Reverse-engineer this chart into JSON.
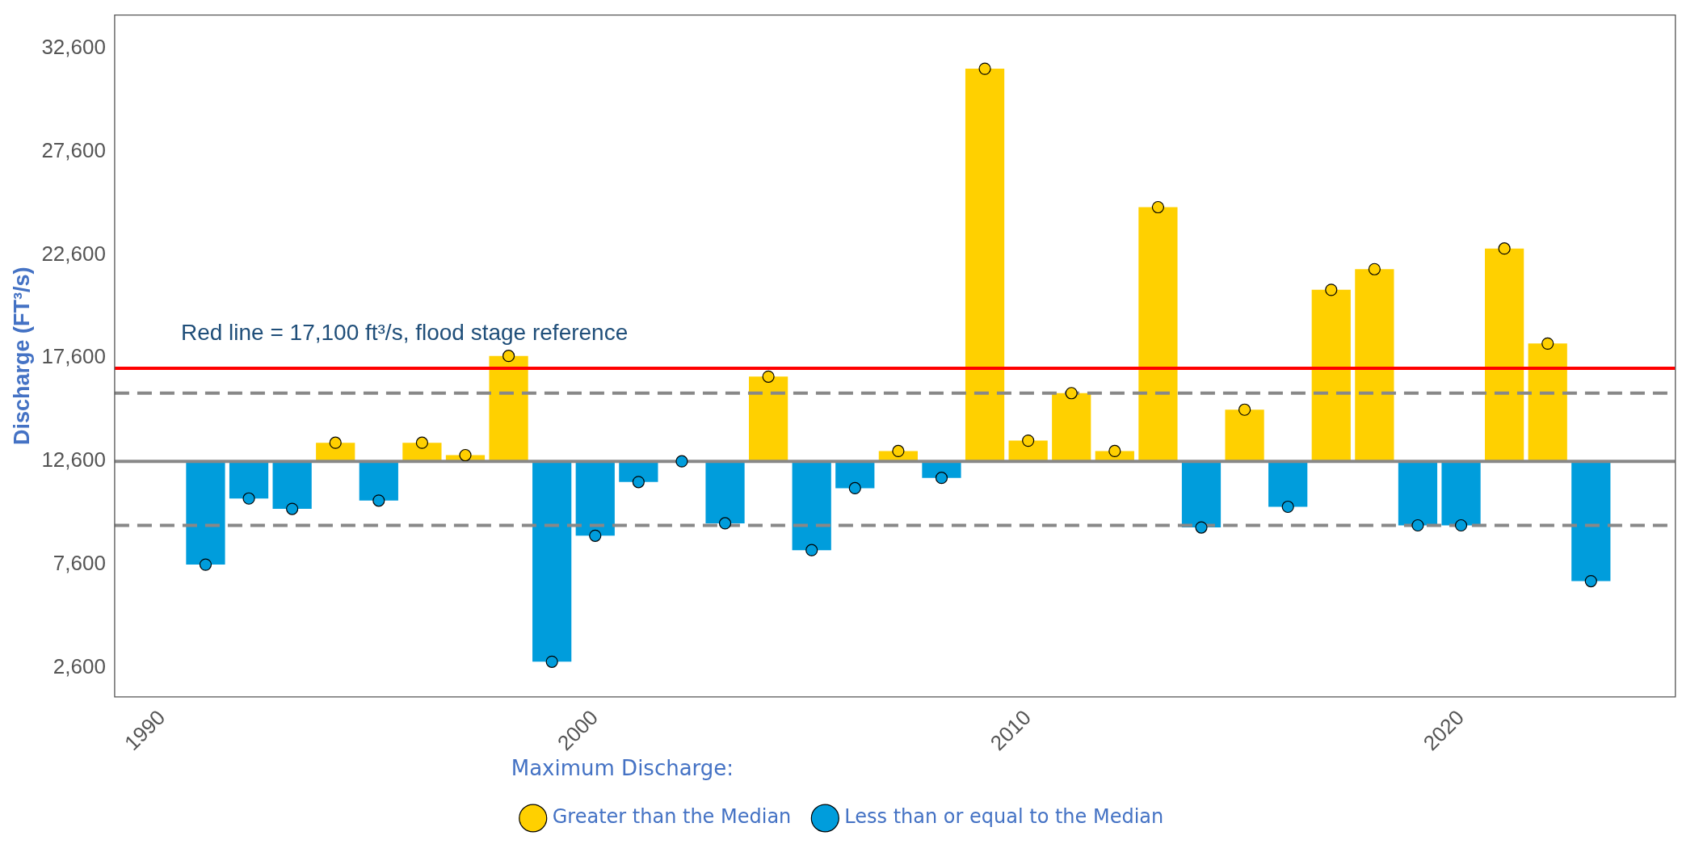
{
  "chart_data": {
    "type": "bar",
    "ylabel": "Discharge (FT³/s)",
    "legend_title": "Maximum Discharge:",
    "legend": "bottom",
    "marker": "circle",
    "grid": false,
    "x": [
      1991,
      1992,
      1993,
      1994,
      1995,
      1996,
      1997,
      1998,
      1999,
      2000,
      2001,
      2002,
      2003,
      2004,
      2005,
      2006,
      2007,
      2008,
      2009,
      2010,
      2011,
      2012,
      2013,
      2014,
      2015,
      2016,
      2017,
      2018,
      2019,
      2020,
      2021,
      2022,
      2023
    ],
    "xlim": [
      1988.9,
      2024.95
    ],
    "xticks": [
      1990,
      2000,
      2010,
      2020
    ],
    "ylim": [
      1200,
      34200
    ],
    "yticks": [
      {
        "value": 2600,
        "label": "2,600"
      },
      {
        "value": 7600,
        "label": "7,600"
      },
      {
        "value": 12600,
        "label": "12,600"
      },
      {
        "value": 17600,
        "label": "17,600"
      },
      {
        "value": 22600,
        "label": "22,600"
      },
      {
        "value": 27600,
        "label": "27,600"
      },
      {
        "value": 32600,
        "label": "32,600"
      }
    ],
    "series": [
      {
        "base": [
          12600,
          12600,
          12600,
          12600,
          12600,
          12600,
          12600,
          12600,
          12600,
          12600,
          12600,
          null,
          12600,
          12600,
          12600,
          12600,
          12600,
          12600,
          12600,
          12600,
          12600,
          12600,
          12600,
          12600,
          12600,
          12600,
          12600,
          12600,
          12600,
          12600,
          12600,
          12600,
          12600
        ],
        "values": [
          -5000,
          -1800,
          -2300,
          900,
          -1900,
          900,
          300,
          5100,
          -9700,
          -3600,
          -1000,
          null,
          -3000,
          4100,
          -4300,
          -1300,
          500,
          -800,
          19000,
          1000,
          3300,
          500,
          12300,
          -3200,
          2500,
          -2200,
          8300,
          9300,
          -3100,
          -3100,
          10300,
          5700,
          -5800
        ],
        "colors": [
          "#009ddc",
          "#009ddc",
          "#009ddc",
          "#ffd000",
          "#009ddc",
          "#ffd000",
          "#ffd000",
          "#ffd000",
          "#009ddc",
          "#009ddc",
          "#009ddc",
          "#009ddc",
          "#009ddc",
          "#ffd000",
          "#009ddc",
          "#009ddc",
          "#ffd000",
          "#009ddc",
          "#ffd000",
          "#ffd000",
          "#ffd000",
          "#ffd000",
          "#ffd000",
          "#009ddc",
          "#ffd000",
          "#009ddc",
          "#ffd000",
          "#ffd000",
          "#009ddc",
          "#009ddc",
          "#ffd000",
          "#ffd000",
          "#009ddc"
        ]
      },
      {
        "type": "scatter",
        "name": "Greater than the Median",
        "color": "#ffd000",
        "values": [
          null,
          null,
          null,
          13500,
          null,
          13500,
          12900,
          17700,
          null,
          null,
          null,
          null,
          null,
          16700,
          null,
          null,
          13100,
          null,
          31600,
          13600,
          15900,
          13100,
          24900,
          null,
          15100,
          null,
          20900,
          21900,
          null,
          null,
          22900,
          18300,
          null
        ]
      },
      {
        "type": "scatter",
        "name": "Less than or equal to the Median",
        "color": "#009ddc",
        "values": [
          7600,
          10800,
          10300,
          null,
          10700,
          null,
          null,
          null,
          2900,
          9000,
          11600,
          12600,
          9600,
          null,
          8300,
          11300,
          null,
          11800,
          null,
          null,
          null,
          null,
          null,
          9400,
          null,
          10400,
          null,
          null,
          9500,
          9500,
          null,
          null,
          6800
        ]
      }
    ],
    "ref_lines": [
      {
        "axis": "y",
        "value": 17100,
        "color": "#ff0000",
        "line_style": "solid"
      },
      {
        "axis": "y",
        "value": 12600,
        "color": "#888888",
        "line_style": "solid"
      },
      {
        "axis": "y",
        "value": 15900,
        "color": "#888888",
        "line_style": "dashed"
      },
      {
        "axis": "y",
        "value": 9500,
        "color": "#888888",
        "line_style": "dashed"
      }
    ],
    "annotations": [
      "Red line = 17,100 ft³/s, flood stage reference"
    ]
  }
}
